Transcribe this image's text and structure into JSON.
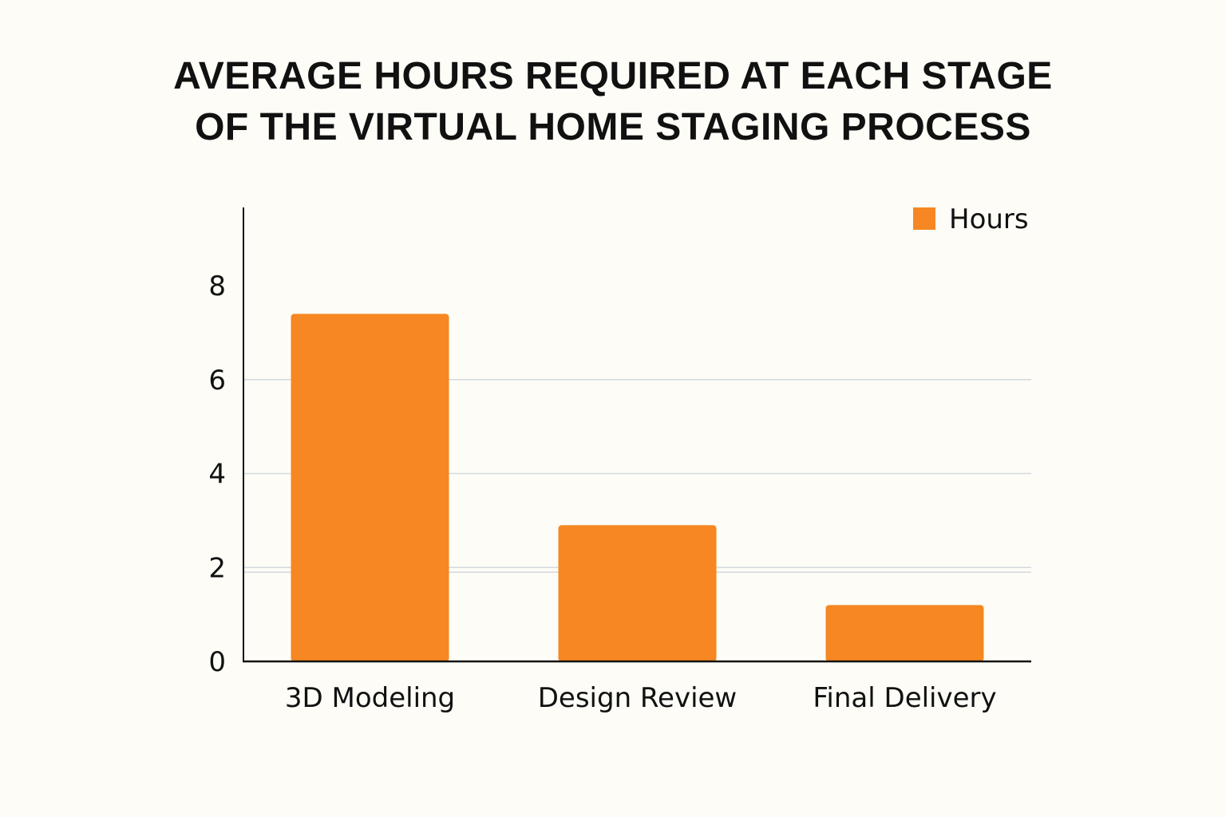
{
  "chart_data": {
    "type": "bar",
    "title": [
      "AVERAGE HOURS REQUIRED AT EACH STAGE",
      "OF THE VIRTUAL HOME STAGING PROCESS"
    ],
    "xlabel": "",
    "ylabel": "",
    "categories": [
      "3D Modeling",
      "Design Review",
      "Final Delivery"
    ],
    "series": [
      {
        "name": "Hours",
        "values": [
          7.4,
          2.9,
          1.2
        ]
      }
    ],
    "yticks": [
      {
        "value": 0,
        "label": "0"
      },
      {
        "value": 2,
        "label": "2"
      },
      {
        "value": 4,
        "label": "4"
      },
      {
        "value": 6,
        "label": "6"
      },
      {
        "value": 8,
        "label": "8"
      }
    ],
    "gridlines": [
      6,
      4,
      2,
      1.9
    ],
    "ylim": [
      0,
      9.7
    ],
    "grid": true,
    "legend_position": "top-right",
    "colors": {
      "bar": "#f68722",
      "grid": "#d3d9de",
      "axis": "#111111",
      "text": "#111111",
      "background": "#fdfcf6"
    }
  }
}
